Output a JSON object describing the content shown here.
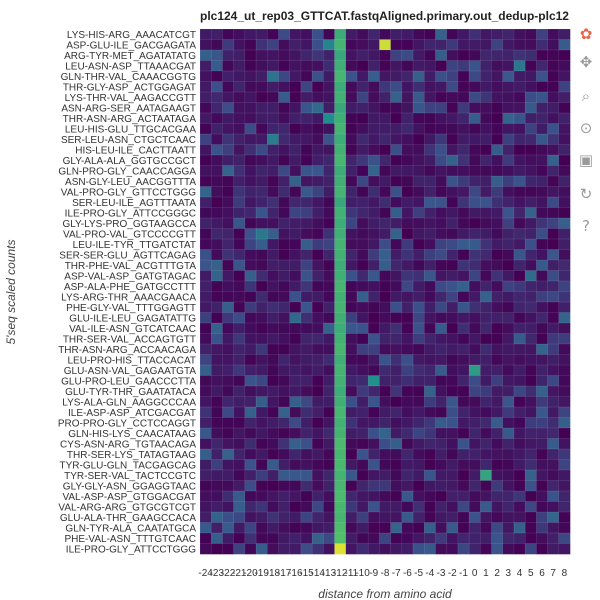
{
  "chart_data": {
    "type": "heatmap",
    "title": "plc124_ut_rep03_GTTCAT.fastqAligned.primary.out_dedup-plc12",
    "xlabel": "distance from amino acid",
    "ylabel": "5'seq scaled counts",
    "x_ticks": [
      "-24",
      "-23",
      "-22",
      "-21",
      "-20",
      "-19",
      "-18",
      "-17",
      "-16",
      "-15",
      "-14",
      "-13",
      "-12",
      "-11",
      "-10",
      "-9",
      "-8",
      "-7",
      "-6",
      "-5",
      "-4",
      "-3",
      "-2",
      "-1",
      "0",
      "1",
      "2",
      "3",
      "4",
      "5",
      "6",
      "7",
      "8"
    ],
    "categories": [
      "LYS-HIS-ARG_AAACATCGT",
      "ASP-GLU-ILE_GACGAGATA",
      "ARG-TYR-MET_AGATATATG",
      "LEU-ASN-ASP_TTAAACGAT",
      "GLN-THR-VAL_CAAACGGTG",
      "THR-GLY-ASP_ACTGGAGAT",
      "LYS-THR-VAL_AAGACCGTT",
      "ASN-ARG-SER_AATAGAAGT",
      "THR-ASN-ARG_ACTAATAGA",
      "LEU-HIS-GLU_TTGCACGAA",
      "SER-LEU-ASN_CTGCTCAAC",
      "HIS-LEU-ILE_CACTTAATT",
      "GLY-ALA-ALA_GGTGCCGCT",
      "GLN-PRO-GLY_CAACCAGGA",
      "ASN-GLY-LEU_AACGGTTTA",
      "VAL-PRO-GLY_GTTCCTGGG",
      "SER-LEU-ILE_AGTTTAATA",
      "ILE-PRO-GLY_ATTCCGGGC",
      "GLY-LYS-PRO_GGTAAGCCA",
      "VAL-PRO-VAL_GTCCCCGTT",
      "LEU-ILE-TYR_TTGATCTAT",
      "SER-SER-GLU_AGTTCAGAG",
      "THR-PHE-VAL_ACGTTTGTA",
      "ASP-VAL-ASP_GATGTAGAC",
      "ASP-ALA-PHE_GATGCCTTT",
      "LYS-ARG-THR_AAACGAACA",
      "PHE-GLY-VAL_TTTGGAGTT",
      "GLU-ILE-LEU_GAGATATTG",
      "VAL-ILE-ASN_GTCATCAAC",
      "THR-SER-VAL_ACCAGTGTT",
      "THR-ASN-ARG_ACCAACAGA",
      "LEU-PRO-HIS_TTACCACAT",
      "GLU-ASN-VAL_GAGAATGTA",
      "GLU-PRO-LEU_GAACCCTTA",
      "GLU-TYR-THR_GAATATACA",
      "LYS-ALA-GLN_AAGGCCCAA",
      "ILE-ASP-ASP_ATCGACGAT",
      "PRO-PRO-GLY_CCTCCAGGT",
      "GLN-HIS-LYS_CAACATAAG",
      "CYS-ASN-ARG_TGTAACAGA",
      "THR-SER-LYS_TATAGTAAG",
      "TYR-GLU-GLN_TACGAGCAG",
      "TYR-SER-VAL_TACTCCGTC",
      "GLY-GLY-ASN_GGAGGTAAC",
      "VAL-ASP-ASP_GTGGACGAT",
      "VAL-ARG-ARG_GTGCGTCGT",
      "GLU-ALA-THR_GAAGCCACA",
      "GLN-TYR-ALA_CAATATGCA",
      "PHE-VAL-ASN_TTTGTCAAC",
      "ILE-PRO-GLY_ATTCCTGGG"
    ],
    "value_scale": "relative 0-1 (Viridis colormap)",
    "column_-12_values": [
      0.62,
      0.65,
      0.6,
      0.63,
      0.66,
      0.62,
      0.64,
      0.6,
      0.63,
      0.65,
      0.62,
      0.64,
      0.66,
      0.62,
      0.63,
      0.65,
      0.6,
      0.64,
      0.62,
      0.63,
      0.65,
      0.64,
      0.62,
      0.63,
      0.66,
      0.64,
      0.65,
      0.63,
      0.62,
      0.64,
      0.66,
      0.63,
      0.65,
      0.64,
      0.62,
      0.63,
      0.66,
      0.64,
      0.65,
      0.68,
      0.66,
      0.67,
      0.65,
      0.66,
      0.68,
      0.67,
      0.66,
      0.69,
      0.7,
      0.95
    ],
    "highlight_cells": [
      {
        "row": "ASP-GLU-ILE_GACGAGATA",
        "x": "-13",
        "value": 0.45
      },
      {
        "row": "ASP-GLU-ILE_GACGAGATA",
        "x": "-8",
        "value": 0.92
      },
      {
        "row": "LEU-ASN-ASP_TTAAACGAT",
        "x": "4",
        "value": 0.4
      },
      {
        "row": "GLN-THR-VAL_CAAACGGTG",
        "x": "-18",
        "value": 0.38
      },
      {
        "row": "ASN-ARG-SER_AATAGAAGT",
        "x": "-14",
        "value": 0.35
      },
      {
        "row": "THR-ASN-ARG_ACTAATAGA",
        "x": "-13",
        "value": 0.48
      },
      {
        "row": "SER-LEU-ASN_CTGCTCAAC",
        "x": "-18",
        "value": 0.42
      },
      {
        "row": "VAL-PRO-VAL_GTCCCCGTT",
        "x": "-19",
        "value": 0.4
      },
      {
        "row": "ASP-VAL-ASP_GATGTAGAC",
        "x": "5",
        "value": 0.35
      },
      {
        "row": "GLU-ILE-LEU_GAGATATTG",
        "x": "-16",
        "value": 0.34
      },
      {
        "row": "GLU-ILE-LEU_GAGATATTG",
        "x": "8",
        "value": 0.32
      },
      {
        "row": "GLU-ASN-VAL_GAGAATGTA",
        "x": "0",
        "value": 0.55
      },
      {
        "row": "GLU-PRO-LEU_GAACCCTTA",
        "x": "-9",
        "value": 0.5
      },
      {
        "row": "CYS-ASN-ARG_TGTAACAGA",
        "x": "-16",
        "value": 0.3
      },
      {
        "row": "TYR-SER-VAL_TACTCCGTC",
        "x": "1",
        "value": 0.58
      }
    ]
  },
  "toolbar": {
    "items": [
      {
        "name": "logo-icon",
        "glyph": "✿",
        "color": "#e8644a"
      },
      {
        "name": "pan-icon",
        "glyph": "✥",
        "color": "#9a9a9a"
      },
      {
        "name": "box-zoom-icon",
        "glyph": "⌕",
        "color": "#9a9a9a"
      },
      {
        "name": "wheel-zoom-icon",
        "glyph": "⊙",
        "color": "#9a9a9a"
      },
      {
        "name": "save-icon",
        "glyph": "▣",
        "color": "#9a9a9a"
      },
      {
        "name": "reset-icon",
        "glyph": "↻",
        "color": "#9a9a9a"
      },
      {
        "name": "help-icon",
        "glyph": "?",
        "color": "#9a9a9a"
      }
    ]
  }
}
